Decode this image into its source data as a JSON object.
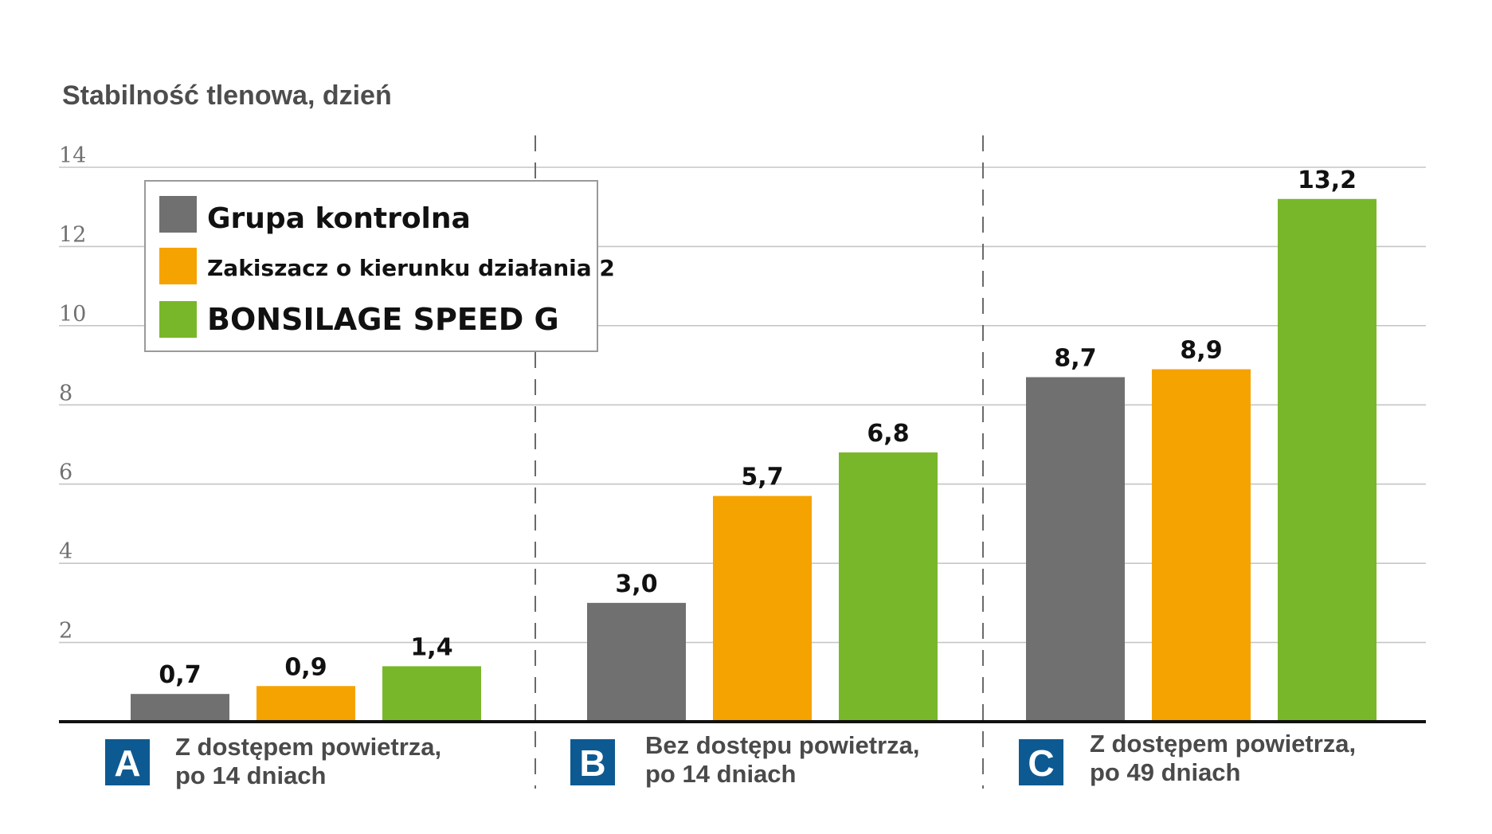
{
  "chart_data": {
    "type": "bar",
    "title": "Stabilność tlenowa, dzień",
    "ylim": [
      0,
      14
    ],
    "yticks": [
      2,
      4,
      6,
      8,
      10,
      12,
      14
    ],
    "grid": true,
    "legend_position": "top-left",
    "colors": [
      "#707070",
      "#f5a300",
      "#79b72a"
    ],
    "badge_color": "#0d5a92",
    "groups": [
      {
        "letter": "A",
        "label_line1": "Z dostępem powietrza,",
        "label_line2": "po 14 dniach"
      },
      {
        "letter": "B",
        "label_line1": "Bez dostępu powietrza,",
        "label_line2": "po 14 dniach"
      },
      {
        "letter": "C",
        "label_line1": "Z dostępem powietrza,",
        "label_line2": "po 49 dniach"
      }
    ],
    "series": [
      {
        "name": "Grupa kontrolna",
        "values": [
          0.7,
          3.0,
          8.7
        ],
        "labels": [
          "0,7",
          "3,0",
          "8,7"
        ]
      },
      {
        "name": "Zakiszacz o kierunku działania 2",
        "values": [
          0.9,
          5.7,
          8.9
        ],
        "labels": [
          "0,9",
          "5,7",
          "8,9"
        ]
      },
      {
        "name": "BONSILAGE SPEED G",
        "values": [
          1.4,
          6.8,
          13.2
        ],
        "labels": [
          "1,4",
          "6,8",
          "13,2"
        ]
      }
    ]
  }
}
